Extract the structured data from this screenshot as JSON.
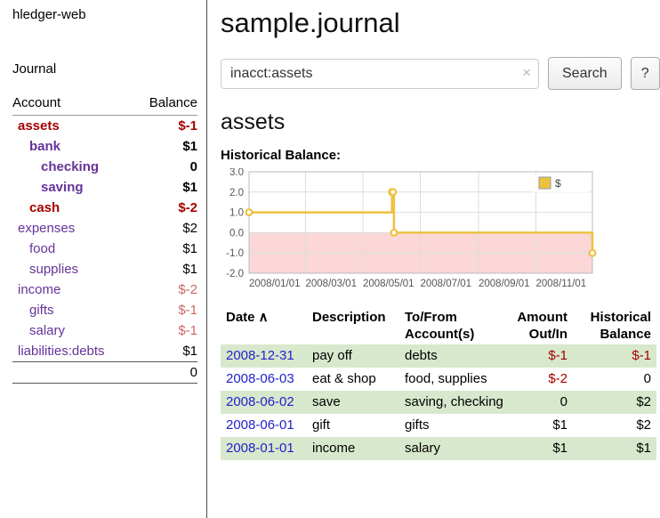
{
  "colors": {
    "purple": "#663399",
    "maroon": "#a40000",
    "pink": "#cc6666",
    "black": "#000000",
    "link_blue": "#2222cc",
    "stripe_green": "#d8e8cc",
    "chart_gold": "#edc240"
  },
  "app": {
    "title": "hledger-web",
    "nav_journal": "Journal"
  },
  "sidebar": {
    "col_account": "Account",
    "col_balance": "Balance",
    "accounts": [
      {
        "name": "assets",
        "indent": 0,
        "bold": true,
        "name_color": "maroon",
        "balance": "$-1",
        "balance_color": "maroon"
      },
      {
        "name": "bank",
        "indent": 1,
        "bold": true,
        "name_color": "purple",
        "balance": "$1",
        "balance_color": "black"
      },
      {
        "name": "checking",
        "indent": 2,
        "bold": true,
        "name_color": "purple",
        "balance": "0",
        "balance_color": "black"
      },
      {
        "name": "saving",
        "indent": 2,
        "bold": true,
        "name_color": "purple",
        "balance": "$1",
        "balance_color": "black"
      },
      {
        "name": "cash",
        "indent": 1,
        "bold": true,
        "name_color": "maroon",
        "balance": "$-2",
        "balance_color": "maroon"
      },
      {
        "name": "expenses",
        "indent": 0,
        "bold": false,
        "name_color": "purple",
        "balance": "$2",
        "balance_color": "black"
      },
      {
        "name": "food",
        "indent": 1,
        "bold": false,
        "name_color": "purple",
        "balance": "$1",
        "balance_color": "black"
      },
      {
        "name": "supplies",
        "indent": 1,
        "bold": false,
        "name_color": "purple",
        "balance": "$1",
        "balance_color": "black"
      },
      {
        "name": "income",
        "indent": 0,
        "bold": false,
        "name_color": "purple",
        "balance": "$-2",
        "balance_color": "pink"
      },
      {
        "name": "gifts",
        "indent": 1,
        "bold": false,
        "name_color": "purple",
        "balance": "$-1",
        "balance_color": "pink"
      },
      {
        "name": "salary",
        "indent": 1,
        "bold": false,
        "name_color": "purple",
        "balance": "$-1",
        "balance_color": "pink"
      },
      {
        "name": "liabilities:debts",
        "indent": 0,
        "bold": false,
        "name_color": "purple",
        "balance": "$1",
        "balance_color": "black"
      }
    ],
    "total": "0"
  },
  "main": {
    "title": "sample.journal",
    "search": {
      "value": "inacct:assets",
      "clear_icon": "×",
      "button": "Search",
      "help": "?"
    },
    "account_heading": "assets",
    "chart_label": "Historical Balance:"
  },
  "chart_data": {
    "type": "line",
    "step": true,
    "title": "Historical Balance",
    "xlim": [
      "2008-01-01",
      "2008-12-31"
    ],
    "ylim": [
      -2,
      3
    ],
    "grid": true,
    "legend_position": "top-right",
    "x_ticks": [
      {
        "label": "2008/01/01",
        "date": "2008-01-01"
      },
      {
        "label": "2008/03/01",
        "date": "2008-03-01"
      },
      {
        "label": "2008/05/01",
        "date": "2008-05-01"
      },
      {
        "label": "2008/07/01",
        "date": "2008-07-01"
      },
      {
        "label": "2008/09/01",
        "date": "2008-09-01"
      },
      {
        "label": "2008/11/01",
        "date": "2008-11-01"
      }
    ],
    "y_ticks": [
      {
        "label": "3.0",
        "value": 3
      },
      {
        "label": "2.0",
        "value": 2
      },
      {
        "label": "1.0",
        "value": 1
      },
      {
        "label": "0.0",
        "value": 0
      },
      {
        "label": "-1.0",
        "value": -1
      },
      {
        "label": "-2.0",
        "value": -2
      }
    ],
    "series": [
      {
        "name": "$",
        "color": "#edc240",
        "points": [
          [
            "2008-01-01",
            1
          ],
          [
            "2008-06-01",
            2
          ],
          [
            "2008-06-02",
            2
          ],
          [
            "2008-06-03",
            0
          ],
          [
            "2008-12-31",
            -1
          ]
        ]
      }
    ],
    "negative_region": {
      "from": 0,
      "to": -2,
      "color": "#fbd7d7"
    }
  },
  "register": {
    "headers": [
      {
        "lines": [
          "Date"
        ],
        "sort": "∧",
        "align": "left"
      },
      {
        "lines": [
          "Description"
        ],
        "align": "left"
      },
      {
        "lines": [
          "To/From",
          "Account(s)"
        ],
        "align": "left"
      },
      {
        "lines": [
          "Amount",
          "Out/In"
        ],
        "align": "right"
      },
      {
        "lines": [
          "Historical",
          "Balance"
        ],
        "align": "right"
      }
    ],
    "rows": [
      {
        "date": "2008-12-31",
        "description": "pay off",
        "accounts": "debts",
        "amount": "$-1",
        "amount_neg": true,
        "balance": "$-1",
        "balance_neg": true,
        "shaded": true
      },
      {
        "date": "2008-06-03",
        "description": "eat & shop",
        "accounts": "food, supplies",
        "amount": "$-2",
        "amount_neg": true,
        "balance": "0",
        "balance_neg": false,
        "shaded": false
      },
      {
        "date": "2008-06-02",
        "description": "save",
        "accounts": "saving, checking",
        "amount": "0",
        "amount_neg": false,
        "balance": "$2",
        "balance_neg": false,
        "shaded": true
      },
      {
        "date": "2008-06-01",
        "description": "gift",
        "accounts": "gifts",
        "amount": "$1",
        "amount_neg": false,
        "balance": "$2",
        "balance_neg": false,
        "shaded": false
      },
      {
        "date": "2008-01-01",
        "description": "income",
        "accounts": "salary",
        "amount": "$1",
        "amount_neg": false,
        "balance": "$1",
        "balance_neg": false,
        "shaded": true
      }
    ]
  }
}
